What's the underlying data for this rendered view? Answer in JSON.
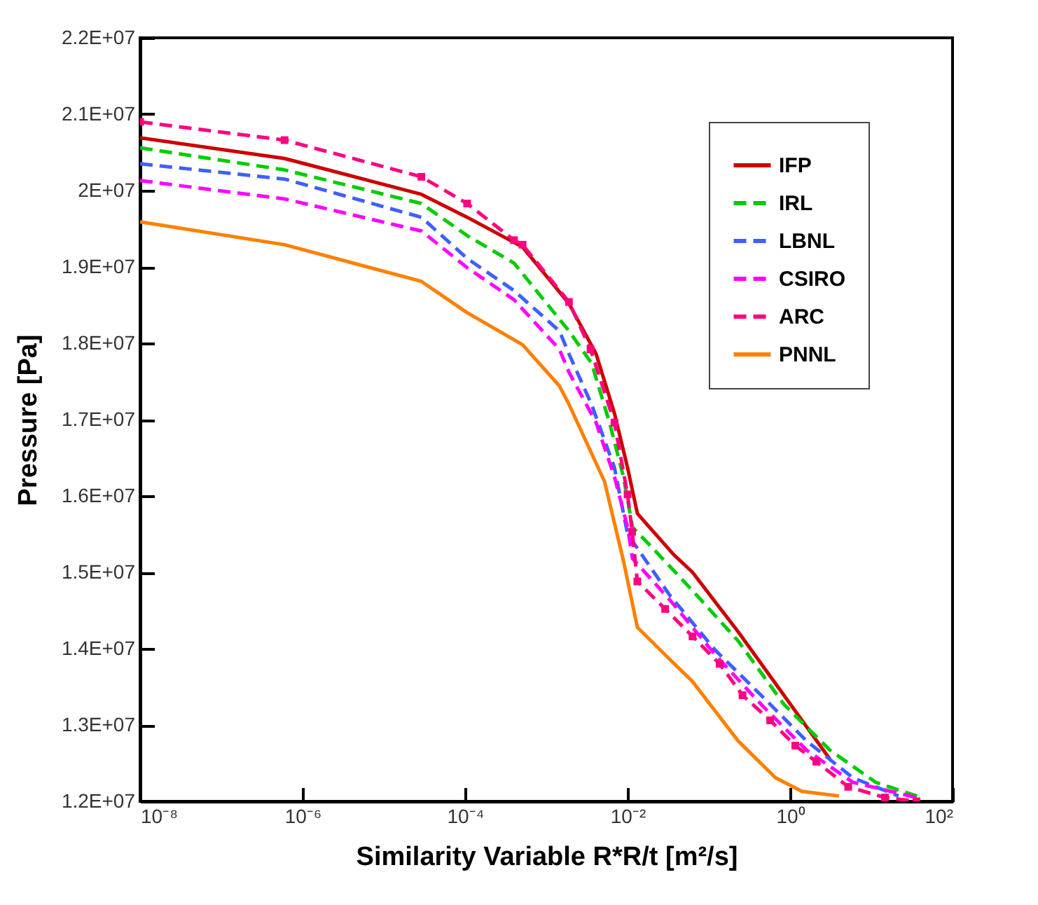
{
  "chart_data": {
    "type": "line",
    "xlabel": "Similarity Variable R*R/t [m²/s]",
    "ylabel": "Pressure [Pa]",
    "log": "x",
    "legend": "top right",
    "grid": false,
    "xlim": [
      1e-08,
      100
    ],
    "xticks": [
      {
        "value": 1e-08,
        "label": "10⁻⁸"
      },
      {
        "value": 1e-06,
        "label": "10⁻⁶"
      },
      {
        "value": 0.0001,
        "label": "10⁻⁴"
      },
      {
        "value": 0.01,
        "label": "10⁻²"
      },
      {
        "value": 1,
        "label": "10⁰"
      },
      {
        "value": 100,
        "label": "10²"
      }
    ],
    "ylim": [
      12000000,
      22000000
    ],
    "yticks": [
      {
        "value": 12000000,
        "label": "1.2E+07"
      },
      {
        "value": 13000000,
        "label": "1.3E+07"
      },
      {
        "value": 14000000,
        "label": "1.4E+07"
      },
      {
        "value": 15000000,
        "label": "1.5E+07"
      },
      {
        "value": 16000000,
        "label": "1.6E+07"
      },
      {
        "value": 17000000,
        "label": "1.7E+07"
      },
      {
        "value": 18000000,
        "label": "1.8E+07"
      },
      {
        "value": 19000000,
        "label": "1.9E+07"
      },
      {
        "value": 20000000,
        "label": "2E+07"
      },
      {
        "value": 21000000,
        "label": "2.1E+07"
      },
      {
        "value": 22000000,
        "label": "2.2E+07"
      }
    ],
    "series": [
      {
        "name": "IFP",
        "color": "#cc0000",
        "line_style": "solid",
        "x": [
          1e-08,
          6e-07,
          2.9e-05,
          0.000106,
          0.00051,
          0.0019,
          0.0041,
          0.0069,
          0.01,
          0.0132,
          0.037,
          0.063,
          0.23,
          0.84,
          3.1
        ],
        "values": [
          20690000,
          20420000,
          19950000,
          19650000,
          19260000,
          18520000,
          17860000,
          17080000,
          16370000,
          15770000,
          15230000,
          15000000,
          14220000,
          13390000,
          12550000
        ]
      },
      {
        "name": "IRL",
        "color": "#00cc00",
        "line_style": "dashed",
        "x": [
          1e-08,
          6e-07,
          2.9e-05,
          0.000106,
          0.0004,
          0.0019,
          0.0036,
          0.006,
          0.0089,
          0.0115,
          0.019,
          0.063,
          0.23,
          0.84,
          3.1,
          11.3,
          41
        ],
        "values": [
          20560000,
          20270000,
          19830000,
          19410000,
          19050000,
          18160000,
          17740000,
          16960000,
          16250000,
          15590000,
          15350000,
          14760000,
          14100000,
          13270000,
          12670000,
          12250000,
          12050000
        ]
      },
      {
        "name": "LBNL",
        "color": "#3f5fff",
        "line_style": "dashed",
        "x": [
          1e-08,
          6e-07,
          2.9e-05,
          0.000106,
          0.0004,
          0.00145,
          0.0019,
          0.0036,
          0.0069,
          0.01,
          0.033,
          0.12,
          0.44,
          1.6,
          5.9,
          21.6
        ],
        "values": [
          20350000,
          20150000,
          19650000,
          19110000,
          18690000,
          18160000,
          17860000,
          17200000,
          16370000,
          15500000,
          14700000,
          13980000,
          13390000,
          12790000,
          12310000,
          12070000
        ]
      },
      {
        "name": "CSIRO",
        "color": "#ff00ff",
        "line_style": "dashed",
        "x": [
          1e-08,
          6e-07,
          2.9e-05,
          0.000106,
          0.0004,
          0.00145,
          0.0019,
          0.0041,
          0.0069,
          0.01,
          0.0115,
          0.033,
          0.12,
          0.44,
          1.6,
          5.9,
          36
        ],
        "values": [
          20130000,
          19890000,
          19470000,
          18990000,
          18570000,
          17920000,
          17620000,
          16960000,
          16250000,
          15590000,
          15180000,
          14640000,
          13920000,
          13270000,
          12670000,
          12250000,
          12050000
        ]
      },
      {
        "name": "ARC",
        "color": "#ff0080",
        "line_style": "dashed",
        "marker": "square",
        "x": [
          1e-08,
          6e-07,
          2.9e-05,
          0.000106,
          0.0004,
          0.00051,
          0.0019,
          0.0035,
          0.0069,
          0.01,
          0.0114,
          0.0132,
          0.029,
          0.063,
          0.136,
          0.26,
          0.57,
          1.16,
          2.1,
          5.2,
          14.7,
          36
        ],
        "values": [
          20900000,
          20660000,
          20180000,
          19830000,
          19350000,
          19290000,
          18540000,
          17920000,
          16960000,
          16020000,
          15530000,
          14880000,
          14520000,
          14160000,
          13800000,
          13390000,
          13060000,
          12730000,
          12520000,
          12190000,
          12050000,
          12000000
        ]
      },
      {
        "name": "PNNL",
        "color": "#ff8000",
        "line_style": "solid",
        "x": [
          1e-08,
          6e-07,
          2.9e-05,
          0.000106,
          0.00051,
          0.00145,
          0.0019,
          0.0052,
          0.0089,
          0.0132,
          0.033,
          0.063,
          0.23,
          0.66,
          1.4,
          4
        ],
        "values": [
          19590000,
          19290000,
          18810000,
          18400000,
          17980000,
          17440000,
          17200000,
          16190000,
          15150000,
          14280000,
          13860000,
          13570000,
          12790000,
          12310000,
          12130000,
          12070000
        ]
      }
    ]
  }
}
